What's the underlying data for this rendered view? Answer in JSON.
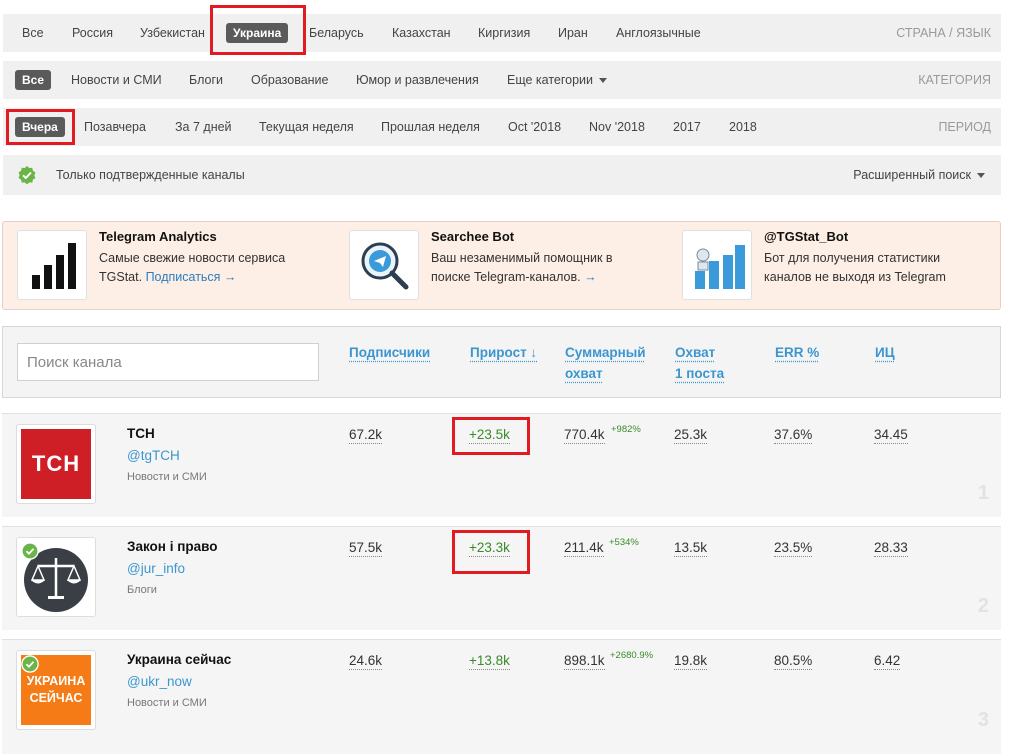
{
  "country_bar": {
    "items": [
      "Все",
      "Россия",
      "Узбекистан",
      "Украина",
      "Беларусь",
      "Казахстан",
      "Киргизия",
      "Иран",
      "Англоязычные"
    ],
    "active": "Украина",
    "label": "СТРАНА / ЯЗЫК"
  },
  "category_bar": {
    "items": [
      "Все",
      "Новости и СМИ",
      "Блоги",
      "Образование",
      "Юмор и развлечения",
      "Еще категории"
    ],
    "active": "Все",
    "label": "КАТЕГОРИЯ"
  },
  "period_bar": {
    "items": [
      "Вчера",
      "Позавчера",
      "За 7 дней",
      "Текущая неделя",
      "Прошлая неделя",
      "Oct '2018",
      "Nov '2018",
      "2017",
      "2018"
    ],
    "active": "Вчера",
    "label": "ПЕРИОД"
  },
  "verified_bar": {
    "label": "Только подтвержденные каналы",
    "advanced": "Расширенный поиск"
  },
  "ads": [
    {
      "title": "Telegram Analytics",
      "text": "Самые свежие новости сервиса TGStat.",
      "link": "Подписаться →",
      "icon": "bar-chart-icon"
    },
    {
      "title": "Searchee Bot",
      "text": "Ваш незаменимый помощник в поиске Telegram-каналов.",
      "link": "→",
      "icon": "telegram-search-icon"
    },
    {
      "title": "@TGStat_Bot",
      "text": "Бот для получения статистики каналов не выходя из Telegram",
      "link": "",
      "icon": "tgstat-bot-icon"
    }
  ],
  "search": {
    "placeholder": "Поиск канала"
  },
  "columns": {
    "subscribers": "Подписчики",
    "growth": "Прирост ↓",
    "reach_l1": "Суммарный",
    "reach_l2": "охват",
    "post_reach_l1": "Охват",
    "post_reach_l2": "1 поста",
    "err": "ERR %",
    "ic": "ИЦ"
  },
  "channels": [
    {
      "rank": "1",
      "name": "ТСН",
      "handle": "@tgTCH",
      "category": "Новости и СМИ",
      "subscribers": "67.2k",
      "growth": "+23.5k",
      "reach": "770.4k",
      "reach_change": "+982%",
      "post_reach": "25.3k",
      "err": "37.6%",
      "ic": "34.45",
      "avatar_text": "ТСН",
      "verified": false
    },
    {
      "rank": "2",
      "name": "Закон і право",
      "handle": "@jur_info",
      "category": "Блоги",
      "subscribers": "57.5k",
      "growth": "+23.3k",
      "reach": "211.4k",
      "reach_change": "+534%",
      "post_reach": "13.5k",
      "err": "23.5%",
      "ic": "28.33",
      "avatar_text": "",
      "verified": true
    },
    {
      "rank": "3",
      "name": "Украина сейчас",
      "handle": "@ukr_now",
      "category": "Новости и СМИ",
      "subscribers": "24.6k",
      "growth": "+13.8k",
      "reach": "898.1k",
      "reach_change": "+2680.9%",
      "post_reach": "19.8k",
      "err": "80.5%",
      "ic": "6.42",
      "avatar_text_l1": "УКРАИНА",
      "avatar_text_l2": "СЕЙЧАС",
      "verified": true
    }
  ],
  "colors": {
    "accent": "#3b96d0",
    "highlight": "#e21b23",
    "growth": "#3a8a2a",
    "pill": "#5a5a5a"
  }
}
